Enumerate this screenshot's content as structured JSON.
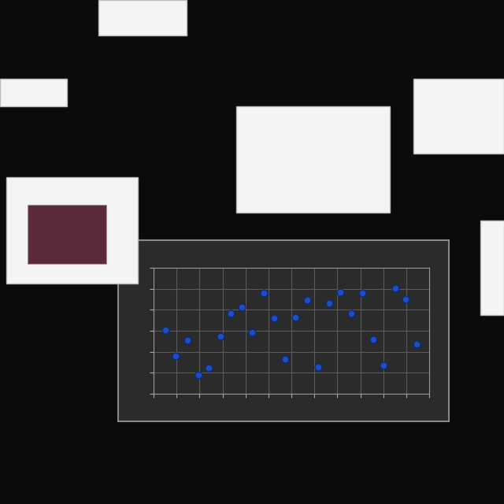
{
  "chart_data": {
    "type": "scatter",
    "x": [
      0.51,
      0.96,
      1.47,
      1.95,
      2.4,
      2.91,
      3.36,
      3.84,
      4.29,
      4.8,
      5.25,
      5.73,
      6.17,
      6.69,
      7.17,
      7.65,
      8.13,
      8.61,
      9.09,
      9.57,
      10.01,
      10.53,
      10.97,
      11.45
    ],
    "values": [
      3.04,
      1.8,
      2.55,
      0.9,
      1.24,
      2.74,
      3.83,
      4.13,
      2.93,
      4.8,
      3.6,
      1.65,
      3.64,
      4.46,
      1.28,
      4.31,
      4.84,
      3.83,
      4.8,
      2.59,
      1.35,
      5.03,
      4.5,
      2.36
    ],
    "color": "#1f4fbf",
    "marker": "o",
    "xlim": [
      0,
      12
    ],
    "xticks": [
      0,
      1,
      2,
      3,
      4,
      5,
      6,
      7,
      8,
      9,
      10,
      11,
      12
    ],
    "ylim": [
      0,
      6
    ],
    "yticks": [
      0,
      1,
      2,
      3,
      4,
      5,
      6
    ],
    "grid": true,
    "tick_labels": false
  }
}
